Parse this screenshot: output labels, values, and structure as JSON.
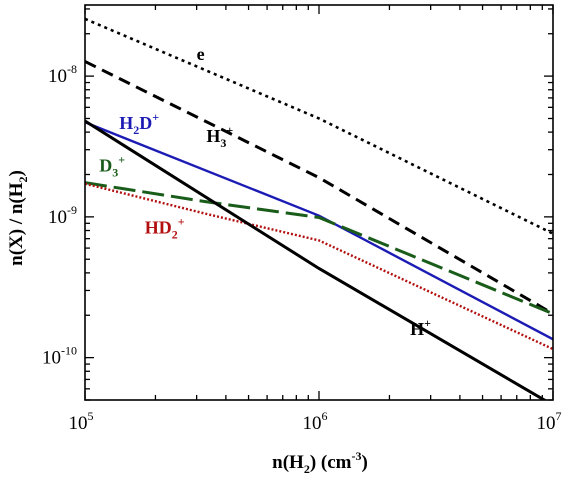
{
  "chart_data": {
    "type": "line",
    "title": "",
    "xlabel": {
      "base": "n(H",
      "sub": "2",
      "after": ")  (cm",
      "sup": "-3",
      "end": ")"
    },
    "ylabel": {
      "base": "n(X) / n(H",
      "sub": "2",
      "end": ")"
    },
    "xscale": "log",
    "yscale": "log",
    "xlim": [
      100000,
      10000000
    ],
    "ylim": [
      5e-11,
      3.2e-08
    ],
    "xticks": [
      {
        "value": 100000,
        "base": "10",
        "exp": "5"
      },
      {
        "value": 1000000,
        "base": "10",
        "exp": "6"
      },
      {
        "value": 10000000,
        "base": "10",
        "exp": "7"
      }
    ],
    "yticks": [
      {
        "value": 1e-10,
        "base": "10",
        "exp": "-10"
      },
      {
        "value": 1e-09,
        "base": "10",
        "exp": "-9"
      },
      {
        "value": 1e-08,
        "base": "10",
        "exp": "-8"
      }
    ],
    "grid": false,
    "legend": "none",
    "series": [
      {
        "name": "e",
        "color": "#000000",
        "dash": "3,4",
        "width": 2.6,
        "x": [
          100000,
          1000000,
          10000000
        ],
        "y": [
          2.55e-08,
          5e-09,
          7.6e-10
        ],
        "label": {
          "main": "e",
          "x": 300000,
          "y": 1.3e-08
        }
      },
      {
        "name": "H3+",
        "color": "#000000",
        "dash": "12,7",
        "width": 3,
        "x": [
          100000,
          1000000,
          10000000
        ],
        "y": [
          1.27e-08,
          1.9e-09,
          2.05e-10
        ],
        "label": {
          "main": "H",
          "sub": "3",
          "sup": "+",
          "x": 330000,
          "y": 3.4e-09
        }
      },
      {
        "name": "H2D+",
        "color": "#1c1cb5",
        "dash": "",
        "width": 2.4,
        "x": [
          100000,
          1000000,
          10000000
        ],
        "y": [
          4.7e-09,
          1.02e-09,
          1.35e-10
        ],
        "label": {
          "main": "H",
          "sub": "2",
          "after": "D",
          "sup": "+",
          "x": 140000,
          "y": 4.2e-09
        }
      },
      {
        "name": "D3+",
        "color": "#1a5c1a",
        "dash": "22,7",
        "width": 3,
        "x": [
          100000,
          330000,
          1000000,
          10000000
        ],
        "y": [
          1.75e-09,
          1.28e-09,
          9.9e-10,
          2.05e-10
        ],
        "label": {
          "main": "D",
          "sub": "3",
          "sup": "+",
          "x": 115000,
          "y": 2.1e-09
        }
      },
      {
        "name": "HD2+",
        "color": "#b21010",
        "dash": "2,2",
        "width": 2.4,
        "x": [
          100000,
          330000,
          1000000,
          10000000
        ],
        "y": [
          1.72e-09,
          1.05e-09,
          6.8e-10,
          1.15e-10
        ],
        "label": {
          "main": "HD",
          "sub": "2",
          "sup": "+",
          "x": 180000,
          "y": 7.6e-10
        }
      },
      {
        "name": "H+",
        "color": "#000000",
        "dash": "",
        "width": 3,
        "x": [
          100000,
          1000000,
          10000000
        ],
        "y": [
          4.8e-09,
          4.3e-10,
          4.6e-11
        ],
        "label": {
          "main": "H",
          "sup": "+",
          "x": 2450000,
          "y": 1.45e-10
        }
      }
    ]
  }
}
